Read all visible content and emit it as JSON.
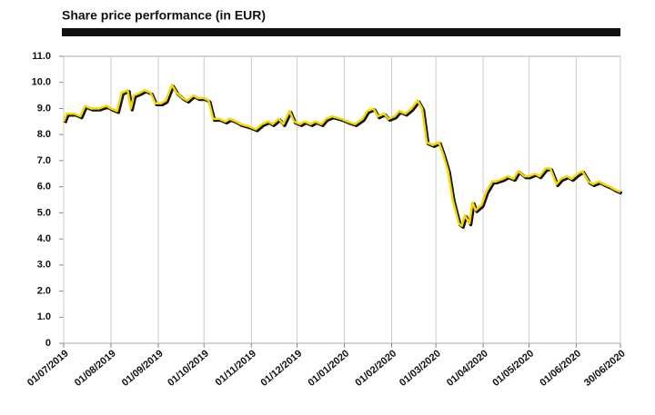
{
  "chart_data": {
    "type": "line",
    "title": "Share price performance (in EUR)",
    "x": [
      "01/07/2019",
      "03/07/2019",
      "08/07/2019",
      "12/07/2019",
      "15/07/2019",
      "19/07/2019",
      "24/07/2019",
      "29/07/2019",
      "01/08/2019",
      "05/08/2019",
      "08/08/2019",
      "12/08/2019",
      "14/08/2019",
      "16/08/2019",
      "20/08/2019",
      "23/08/2019",
      "27/08/2019",
      "30/08/2019",
      "03/09/2019",
      "06/09/2019",
      "10/09/2019",
      "13/09/2019",
      "17/09/2019",
      "20/09/2019",
      "24/09/2019",
      "27/09/2019",
      "01/10/2019",
      "04/10/2019",
      "07/10/2019",
      "11/10/2019",
      "15/10/2019",
      "18/10/2019",
      "22/10/2019",
      "25/10/2019",
      "31/10/2019",
      "04/11/2019",
      "08/11/2019",
      "12/11/2019",
      "15/11/2019",
      "19/11/2019",
      "22/11/2019",
      "26/11/2019",
      "29/11/2019",
      "03/12/2019",
      "06/12/2019",
      "10/12/2019",
      "13/12/2019",
      "17/12/2019",
      "20/12/2019",
      "24/12/2019",
      "30/12/2019",
      "03/01/2020",
      "08/01/2020",
      "13/01/2020",
      "16/01/2020",
      "20/01/2020",
      "23/01/2020",
      "27/01/2020",
      "30/01/2020",
      "03/02/2020",
      "06/02/2020",
      "10/02/2020",
      "14/02/2020",
      "18/02/2020",
      "21/02/2020",
      "24/02/2020",
      "28/02/2020",
      "03/03/2020",
      "06/03/2020",
      "09/03/2020",
      "12/03/2020",
      "16/03/2020",
      "18/03/2020",
      "20/03/2020",
      "23/03/2020",
      "25/03/2020",
      "27/03/2020",
      "31/03/2020",
      "03/04/2020",
      "07/04/2020",
      "09/04/2020",
      "14/04/2020",
      "17/04/2020",
      "21/04/2020",
      "24/04/2020",
      "28/04/2020",
      "01/05/2020",
      "05/05/2020",
      "08/05/2020",
      "12/05/2020",
      "15/05/2020",
      "19/05/2020",
      "22/05/2020",
      "26/05/2020",
      "29/05/2020",
      "02/06/2020",
      "05/06/2020",
      "09/06/2020",
      "12/06/2020",
      "16/06/2020",
      "19/06/2020",
      "23/06/2020",
      "26/06/2020",
      "30/06/2020"
    ],
    "series": [
      {
        "color": "#f5d800",
        "values": [
          8.5,
          8.8,
          8.8,
          8.7,
          9.1,
          9.0,
          9.0,
          9.1,
          9.0,
          8.9,
          9.6,
          9.7,
          9.0,
          9.5,
          9.6,
          9.7,
          9.6,
          9.2,
          9.2,
          9.3,
          9.9,
          9.6,
          9.4,
          9.3,
          9.5,
          9.4,
          9.4,
          9.3,
          8.6,
          8.6,
          8.5,
          8.6,
          8.5,
          8.4,
          8.3,
          8.2,
          8.4,
          8.5,
          8.4,
          8.6,
          8.4,
          8.9,
          8.5,
          8.4,
          8.5,
          8.4,
          8.5,
          8.4,
          8.6,
          8.7,
          8.6,
          8.5,
          8.4,
          8.6,
          8.9,
          9.0,
          8.7,
          8.8,
          8.6,
          8.7,
          8.9,
          8.8,
          9.0,
          9.3,
          9.0,
          7.7,
          7.6,
          7.7,
          7.2,
          6.6,
          5.5,
          4.6,
          4.5,
          4.9,
          4.6,
          5.4,
          5.1,
          5.3,
          5.8,
          6.2,
          6.2,
          6.3,
          6.4,
          6.3,
          6.6,
          6.4,
          6.4,
          6.5,
          6.4,
          6.7,
          6.7,
          6.1,
          6.3,
          6.4,
          6.3,
          6.5,
          6.6,
          6.2,
          6.1,
          6.2,
          6.1,
          6.0,
          5.9,
          5.8
        ]
      }
    ],
    "xlim": [
      "01/07/2019",
      "30/06/2020"
    ],
    "xticks": [
      "01/07/2019",
      "01/08/2019",
      "01/09/2019",
      "01/10/2019",
      "01/11/2019",
      "01/12/2019",
      "01/01/2020",
      "01/02/2020",
      "01/03/2020",
      "01/04/2020",
      "01/05/2020",
      "01/06/2020",
      "30/06/2020"
    ],
    "ylim": [
      0,
      11
    ],
    "yticks": [
      0,
      {
        "value": 1,
        "label": "1.0"
      },
      {
        "value": 2,
        "label": "2.0"
      },
      {
        "value": 3,
        "label": "3.0"
      },
      {
        "value": 4,
        "label": "4.0"
      },
      {
        "value": 5,
        "label": "5.0"
      },
      {
        "value": 6,
        "label": "6.0"
      },
      {
        "value": 7,
        "label": "7.0"
      },
      {
        "value": 8,
        "label": "8.0"
      },
      {
        "value": 9,
        "label": "9.0"
      },
      {
        "value": 10,
        "label": "10.0"
      },
      {
        "value": 11,
        "label": "11.0"
      }
    ],
    "grid": "x"
  }
}
